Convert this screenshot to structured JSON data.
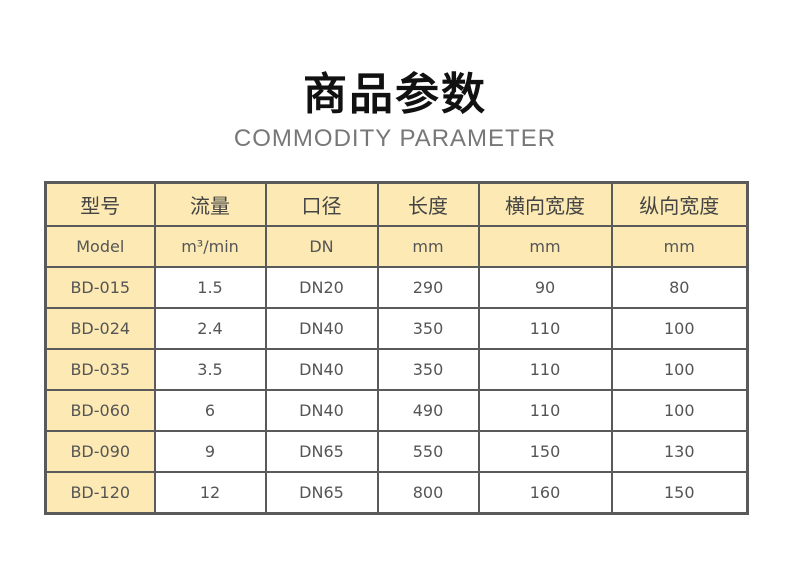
{
  "title": "商品参数",
  "subtitle": "COMMODITY PARAMETER",
  "colors": {
    "header_bg": "#fce9b3",
    "border": "#5a5a5a"
  },
  "headers": [
    "型号",
    "流量",
    "口径",
    "长度",
    "横向宽度",
    "纵向宽度"
  ],
  "units": [
    "Model",
    "m³/min",
    "DN",
    "mm",
    "mm",
    "mm"
  ],
  "rows": [
    [
      "BD-015",
      "1.5",
      "DN20",
      "290",
      "90",
      "80"
    ],
    [
      "BD-024",
      "2.4",
      "DN40",
      "350",
      "110",
      "100"
    ],
    [
      "BD-035",
      "3.5",
      "DN40",
      "350",
      "110",
      "100"
    ],
    [
      "BD-060",
      "6",
      "DN40",
      "490",
      "110",
      "100"
    ],
    [
      "BD-090",
      "9",
      "DN65",
      "550",
      "150",
      "130"
    ],
    [
      "BD-120",
      "12",
      "DN65",
      "800",
      "160",
      "150"
    ]
  ]
}
